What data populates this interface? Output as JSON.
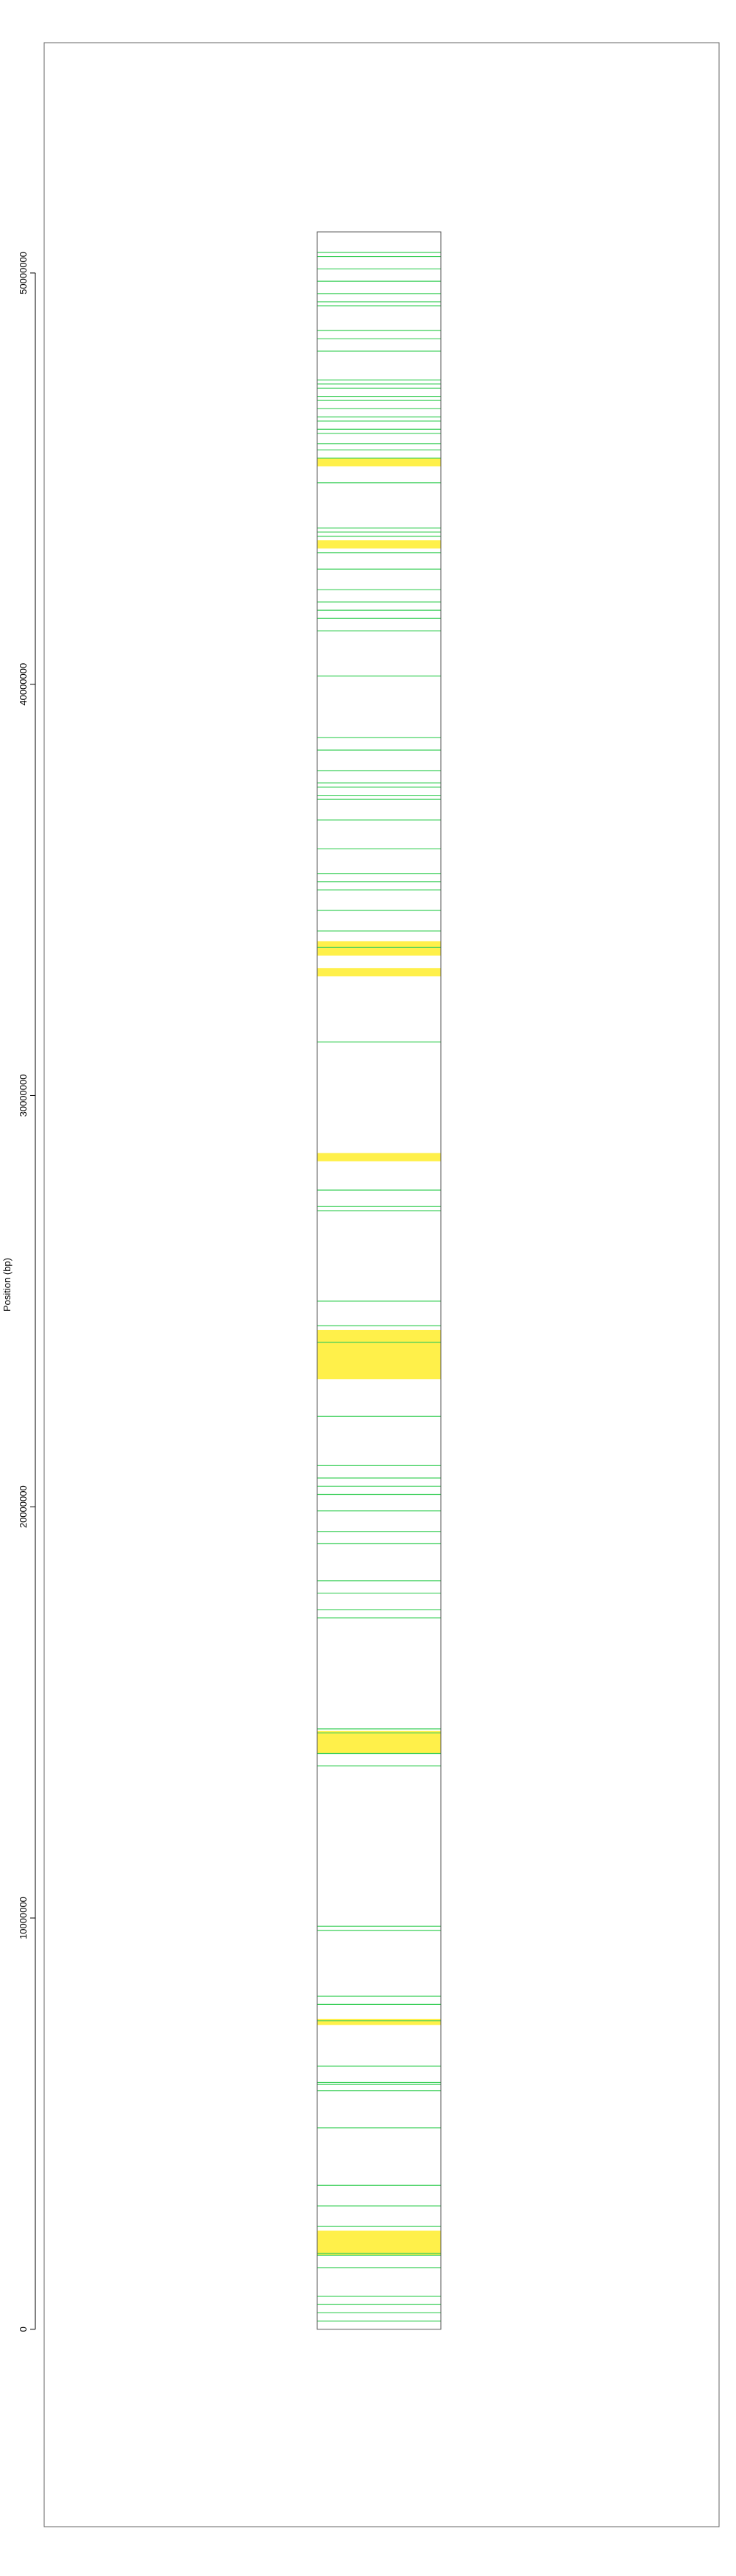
{
  "chart_data": {
    "type": "bar",
    "title": "",
    "xlabel": "",
    "ylabel": "Position (bp)",
    "ylim": [
      -4800000,
      55600000
    ],
    "chromosome_range": [
      0,
      51000000
    ],
    "y_ticks": [
      {
        "value": 0,
        "label": "0"
      },
      {
        "value": 10000000,
        "label": "10000000"
      },
      {
        "value": 20000000,
        "label": "20000000"
      },
      {
        "value": 30000000,
        "label": "30000000"
      },
      {
        "value": 40000000,
        "label": "40000000"
      },
      {
        "value": 50000000,
        "label": "50000000"
      }
    ],
    "grid": false,
    "legend": "none",
    "colors": {
      "highlight": "#fff04a",
      "feature": "#3ccf5a",
      "outline": "#555555",
      "frame": "#666666"
    },
    "highlight_regions": [
      {
        "start": 1800000,
        "end": 2400000
      },
      {
        "start": 7400000,
        "end": 7550000
      },
      {
        "start": 14000000,
        "end": 14550000
      },
      {
        "start": 23100000,
        "end": 24300000
      },
      {
        "start": 28400000,
        "end": 28600000
      },
      {
        "start": 32900000,
        "end": 33100000
      },
      {
        "start": 33400000,
        "end": 33750000
      },
      {
        "start": 43300000,
        "end": 43500000
      },
      {
        "start": 45300000,
        "end": 45500000
      }
    ],
    "features": [
      200000,
      400000,
      600000,
      800000,
      1500000,
      1800000,
      1850000,
      2500000,
      3000000,
      3500000,
      4900000,
      5800000,
      5950000,
      6000000,
      6400000,
      7500000,
      7900000,
      8100000,
      9700000,
      9800000,
      13700000,
      14000000,
      14500000,
      14600000,
      17300000,
      17500000,
      17900000,
      18200000,
      19100000,
      19400000,
      19900000,
      20300000,
      20500000,
      20700000,
      21000000,
      22200000,
      24000000,
      24400000,
      25000000,
      27200000,
      27300000,
      27700000,
      31300000,
      33600000,
      34000000,
      34500000,
      35000000,
      35200000,
      35400000,
      36000000,
      36700000,
      37200000,
      37300000,
      37500000,
      37600000,
      37900000,
      38400000,
      38700000,
      40200000,
      41300000,
      41600000,
      41800000,
      42000000,
      42300000,
      42800000,
      43200000,
      43600000,
      43700000,
      43800000,
      44900000,
      45500000,
      45700000,
      45850000,
      46100000,
      46200000,
      46400000,
      46500000,
      46700000,
      46900000,
      47000000,
      47200000,
      47300000,
      47400000,
      48100000,
      48400000,
      48600000,
      49200000,
      49300000,
      49500000,
      49800000,
      50100000,
      50400000,
      50500000
    ]
  }
}
